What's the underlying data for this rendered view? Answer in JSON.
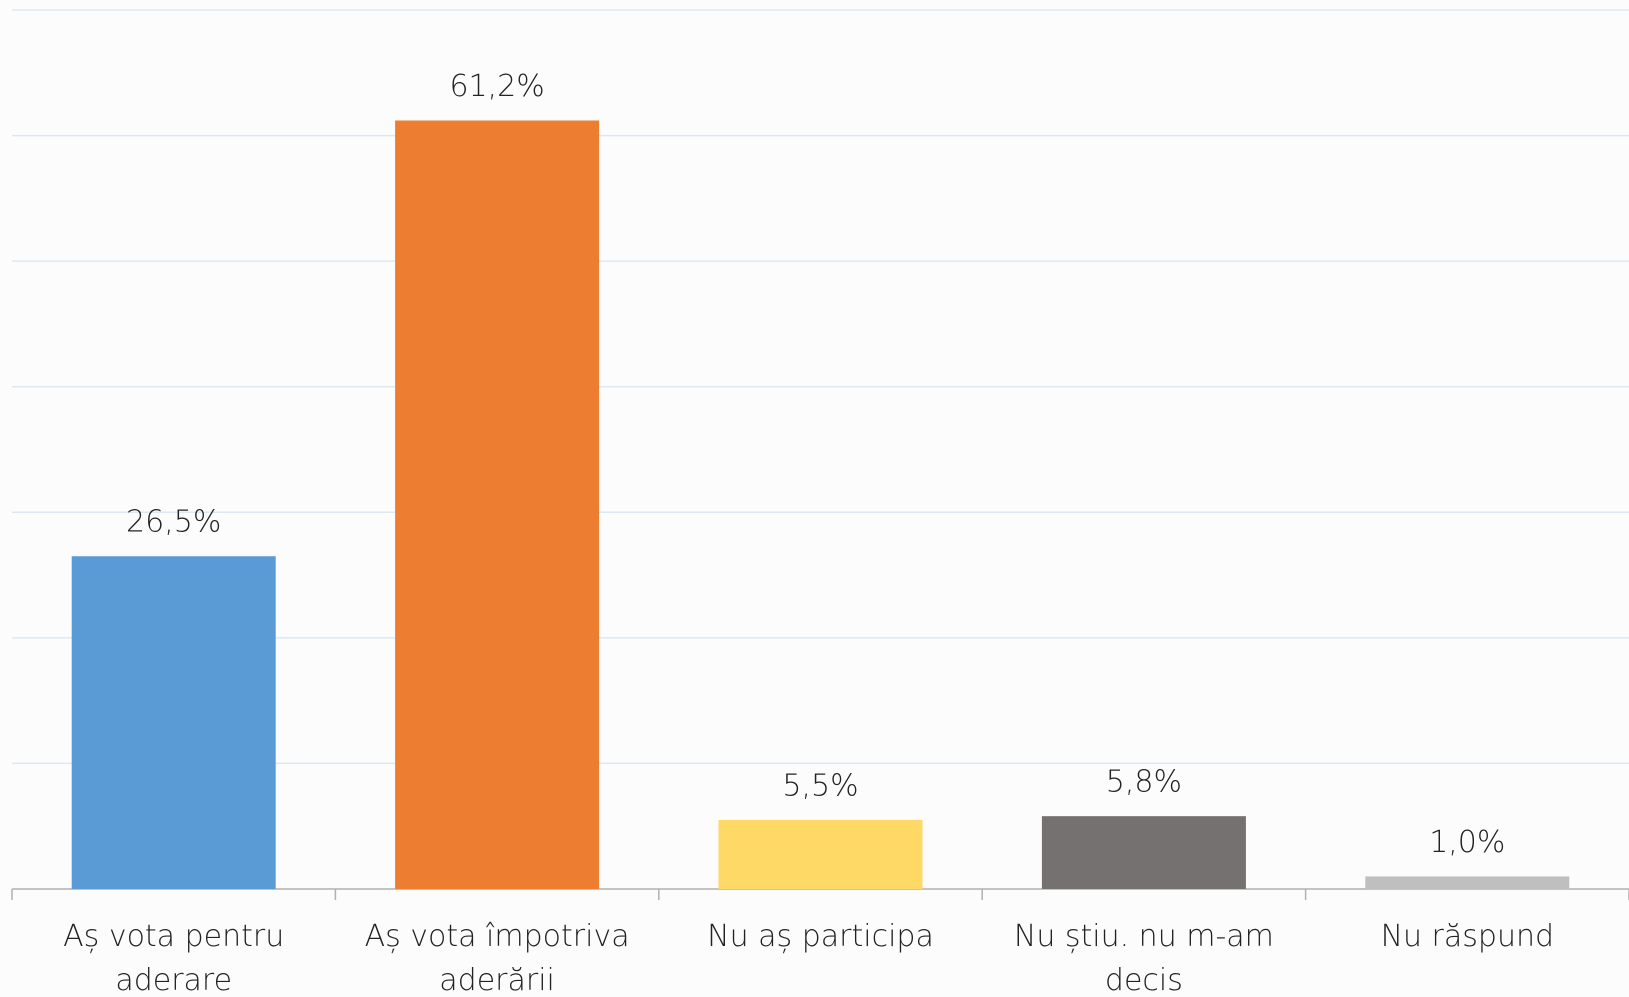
{
  "chart_data": {
    "type": "bar",
    "categories": [
      "Aș vota pentru aderare",
      "Aș vota împotriva aderării",
      "Nu aș participa",
      "Nu știu. nu m-am decis",
      "Nu răspund"
    ],
    "values": [
      26.5,
      61.2,
      5.5,
      5.8,
      1.0
    ],
    "value_labels": [
      "26,5%",
      "61,2%",
      "5,5%",
      "5,8%",
      "1,0%"
    ],
    "colors": [
      "#5b9bd5",
      "#ed7d31",
      "#ffd966",
      "#767171",
      "#bfbfbf"
    ],
    "ylim": [
      0,
      70
    ],
    "yticks": [
      0,
      10,
      20,
      30,
      40,
      50,
      60,
      70
    ],
    "grid": true
  }
}
